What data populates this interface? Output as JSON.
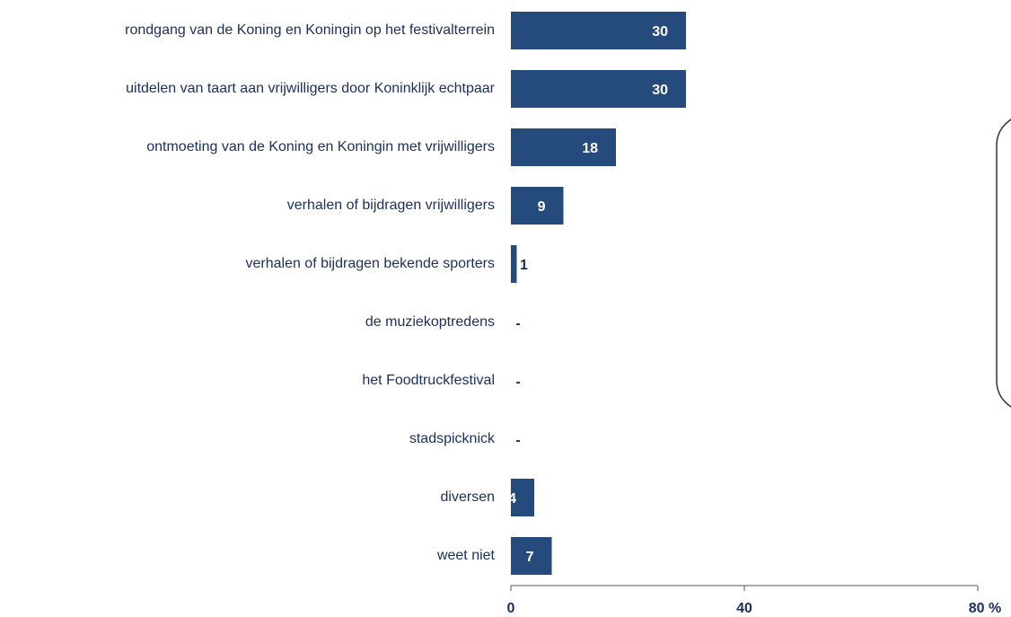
{
  "chart_data": {
    "type": "bar",
    "orientation": "horizontal",
    "categories": [
      "rondgang van de Koning en Koningin op het festivalterrein",
      "uitdelen van taart aan vrijwilligers door Koninklijk echtpaar",
      "ontmoeting van de Koning en Koningin met vrijwilligers",
      "verhalen of bijdragen vrijwilligers",
      "verhalen of bijdragen bekende sporters",
      "de muziekoptredens",
      "het Foodtruckfestival",
      "stadspicknick",
      "diversen",
      "weet niet"
    ],
    "values": [
      30,
      30,
      18,
      9,
      1,
      0,
      0,
      0,
      4,
      7
    ],
    "value_labels": [
      "30",
      "30",
      "18",
      "9",
      "1",
      "-",
      "-",
      "-",
      "4",
      "7"
    ],
    "color": "#254a7c",
    "xlim": [
      0,
      80
    ],
    "xticks": [
      0,
      40,
      {
        "value": 80,
        "label": "80 %"
      }
    ]
  }
}
